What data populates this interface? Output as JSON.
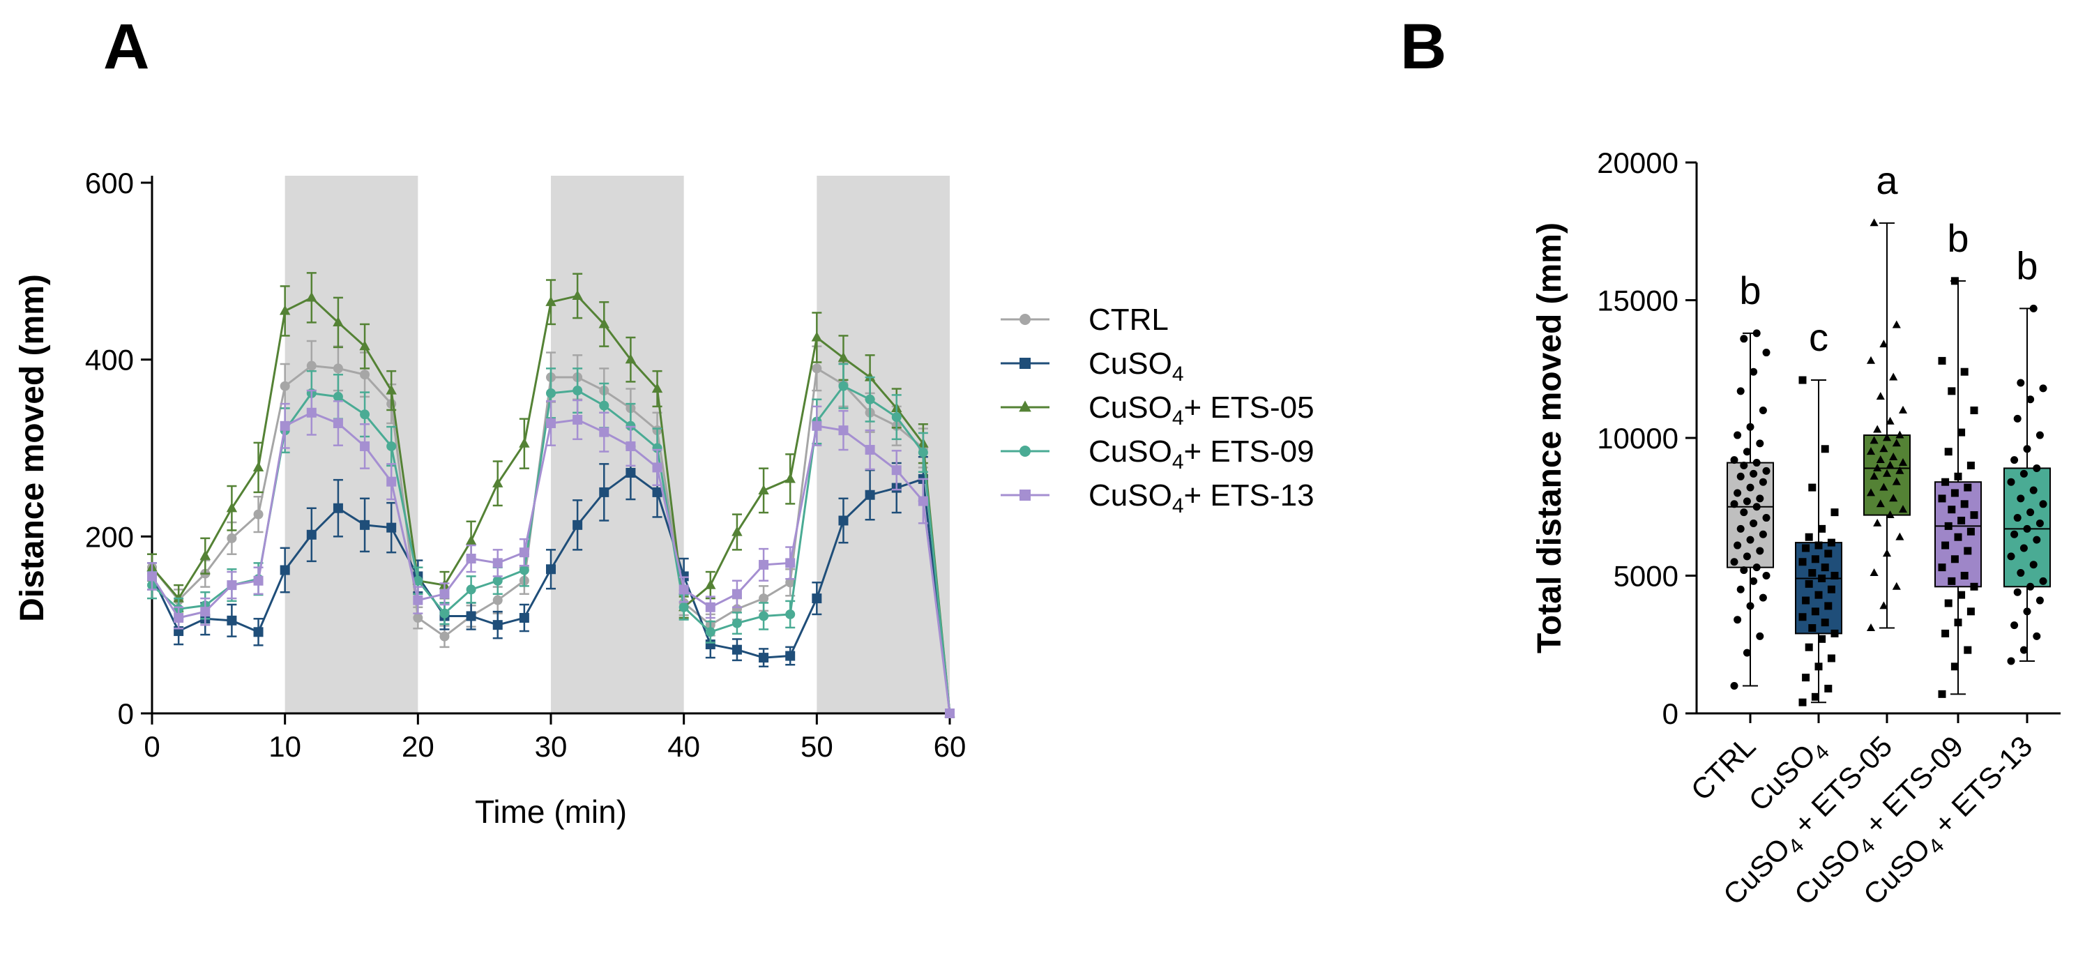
{
  "figure": {
    "panel_a_label": "A",
    "panel_b_label": "B"
  },
  "chart_data": [
    {
      "type": "line",
      "panel": "A",
      "title": "",
      "xlabel": "Time (min)",
      "ylabel": "Distance moved (mm)",
      "xlim": [
        0,
        60
      ],
      "ylim": [
        0,
        600
      ],
      "xticks": [
        0,
        10,
        20,
        30,
        40,
        50,
        60
      ],
      "yticks": [
        0,
        200,
        400,
        600
      ],
      "shaded_intervals": [
        [
          10,
          20
        ],
        [
          30,
          40
        ],
        [
          50,
          60
        ]
      ],
      "legend_position": "right",
      "x": [
        0,
        2,
        4,
        6,
        8,
        10,
        12,
        14,
        16,
        18,
        20,
        22,
        24,
        26,
        28,
        30,
        32,
        34,
        36,
        38,
        40,
        42,
        44,
        46,
        48,
        50,
        52,
        54,
        56,
        58,
        60
      ],
      "series": [
        {
          "name": "CTRL",
          "label_main": "CTRL",
          "label_sub": "",
          "label_suffix": "",
          "color": "#a6a6a6",
          "marker": "circle",
          "values": [
            165,
            128,
            158,
            198,
            225,
            370,
            393,
            390,
            383,
            350,
            108,
            87,
            110,
            128,
            150,
            380,
            380,
            365,
            345,
            320,
            125,
            100,
            118,
            130,
            148,
            390,
            372,
            340,
            325,
            300,
            0
          ],
          "errors": [
            15,
            12,
            15,
            18,
            20,
            25,
            28,
            25,
            25,
            22,
            12,
            12,
            12,
            15,
            15,
            28,
            25,
            25,
            22,
            20,
            14,
            12,
            12,
            14,
            15,
            25,
            25,
            22,
            22,
            22,
            0
          ]
        },
        {
          "name": "CuSO4",
          "label_main": "CuSO",
          "label_sub": "4",
          "label_suffix": "",
          "color": "#1f4e79",
          "marker": "square",
          "values": [
            155,
            93,
            107,
            105,
            92,
            162,
            202,
            232,
            213,
            210,
            155,
            110,
            110,
            100,
            108,
            163,
            213,
            250,
            272,
            250,
            155,
            78,
            72,
            63,
            65,
            130,
            218,
            247,
            255,
            265,
            0
          ],
          "errors": [
            15,
            15,
            18,
            18,
            15,
            25,
            30,
            32,
            30,
            28,
            18,
            15,
            15,
            15,
            15,
            22,
            28,
            32,
            30,
            28,
            20,
            15,
            12,
            10,
            10,
            18,
            25,
            28,
            28,
            25,
            0
          ]
        },
        {
          "name": "CuSO4+ ETS-05",
          "label_main": "CuSO",
          "label_sub": "4",
          "label_suffix": "+ ETS-05",
          "color": "#548235",
          "marker": "triangle",
          "values": [
            165,
            130,
            178,
            232,
            278,
            455,
            470,
            442,
            415,
            365,
            150,
            145,
            195,
            260,
            305,
            465,
            472,
            440,
            400,
            367,
            120,
            145,
            205,
            252,
            265,
            425,
            402,
            380,
            345,
            305,
            0
          ],
          "errors": [
            15,
            15,
            20,
            25,
            28,
            28,
            28,
            28,
            25,
            22,
            15,
            15,
            22,
            25,
            28,
            25,
            25,
            25,
            25,
            20,
            12,
            15,
            20,
            25,
            28,
            28,
            25,
            25,
            22,
            22,
            0
          ]
        },
        {
          "name": "CuSO4+ ETS-09",
          "label_main": "CuSO",
          "label_sub": "4",
          "label_suffix": "+ ETS-09",
          "color": "#4aab94",
          "marker": "circle",
          "values": [
            145,
            118,
            122,
            145,
            152,
            320,
            362,
            358,
            338,
            302,
            150,
            113,
            140,
            150,
            162,
            362,
            365,
            348,
            325,
            300,
            120,
            92,
            102,
            110,
            112,
            330,
            370,
            355,
            335,
            295,
            0
          ],
          "errors": [
            15,
            12,
            15,
            18,
            18,
            25,
            25,
            25,
            25,
            22,
            15,
            12,
            15,
            15,
            18,
            28,
            25,
            25,
            25,
            22,
            14,
            12,
            12,
            15,
            15,
            25,
            25,
            25,
            25,
            22,
            0
          ]
        },
        {
          "name": "CuSO4+ ETS-13",
          "label_main": "CuSO",
          "label_sub": "4",
          "label_suffix": "+ ETS-13",
          "color": "#a58fd1",
          "marker": "square",
          "values": [
            155,
            108,
            115,
            145,
            150,
            325,
            340,
            328,
            302,
            262,
            128,
            135,
            175,
            170,
            182,
            328,
            332,
            318,
            302,
            278,
            140,
            120,
            135,
            168,
            170,
            325,
            320,
            298,
            275,
            240,
            0
          ],
          "errors": [
            15,
            12,
            15,
            15,
            15,
            25,
            25,
            25,
            25,
            20,
            15,
            12,
            15,
            15,
            15,
            25,
            22,
            22,
            22,
            20,
            14,
            12,
            15,
            18,
            18,
            22,
            22,
            22,
            22,
            25,
            0
          ]
        }
      ]
    },
    {
      "type": "box",
      "panel": "B",
      "title": "",
      "xlabel": "",
      "ylabel": "Total distance moved (mm)",
      "ylim": [
        0,
        20000
      ],
      "yticks": [
        0,
        5000,
        10000,
        15000,
        20000
      ],
      "groups": [
        {
          "name": "CTRL",
          "label_main": "CTRL",
          "label_sub": "",
          "label_suffix": "",
          "color": "#bfbfbf",
          "marker": "circle",
          "significance": "b",
          "min": 1000,
          "q1": 5300,
          "median": 7500,
          "q3": 9100,
          "max": 13800,
          "points": [
            1000,
            2200,
            2800,
            3400,
            3900,
            4200,
            4500,
            4800,
            5000,
            5200,
            5300,
            5500,
            5700,
            5900,
            6100,
            6300,
            6500,
            6700,
            6900,
            7100,
            7300,
            7500,
            7600,
            7700,
            7800,
            8000,
            8200,
            8400,
            8600,
            8700,
            8800,
            9000,
            9100,
            9200,
            9500,
            9800,
            10100,
            10400,
            11000,
            11700,
            12400,
            13100,
            13600,
            13800
          ]
        },
        {
          "name": "CuSO4",
          "label_main": "CuSO",
          "label_sub": "4",
          "label_suffix": "",
          "color": "#1f4e79",
          "marker": "square",
          "significance": "c",
          "min": 400,
          "q1": 2900,
          "median": 4900,
          "q3": 6200,
          "max": 12100,
          "points": [
            400,
            600,
            900,
            1300,
            1700,
            2000,
            2400,
            2700,
            2900,
            3100,
            3300,
            3500,
            3700,
            3900,
            4100,
            4300,
            4500,
            4700,
            4900,
            5000,
            5100,
            5300,
            5500,
            5600,
            5800,
            6000,
            6100,
            6200,
            6400,
            6700,
            7300,
            8200,
            9600,
            12100
          ]
        },
        {
          "name": "CuSO4 + ETS-05",
          "label_main": "CuSO",
          "label_sub": "4",
          "label_suffix": " + ETS-05",
          "color": "#548235",
          "marker": "triangle",
          "significance": "a",
          "min": 3100,
          "q1": 7200,
          "median": 8900,
          "q3": 10100,
          "max": 17800,
          "points": [
            3100,
            3900,
            4600,
            5100,
            5800,
            6400,
            6900,
            7200,
            7400,
            7600,
            7800,
            8000,
            8200,
            8400,
            8600,
            8700,
            8800,
            8900,
            9000,
            9100,
            9200,
            9300,
            9500,
            9600,
            9800,
            9900,
            10000,
            10100,
            10300,
            10600,
            11000,
            11500,
            12200,
            12800,
            13400,
            14100,
            17800
          ]
        },
        {
          "name": "CuSO4 + ETS-09",
          "label_main": "CuSO",
          "label_sub": "4",
          "label_suffix": " + ETS-09",
          "color": "#9e86c8",
          "marker": "square",
          "significance": "b",
          "min": 700,
          "q1": 4600,
          "median": 6800,
          "q3": 8400,
          "max": 15700,
          "points": [
            700,
            1700,
            2300,
            2900,
            3300,
            3700,
            4000,
            4300,
            4600,
            4800,
            5000,
            5300,
            5600,
            5900,
            6100,
            6400,
            6600,
            6800,
            7000,
            7200,
            7400,
            7600,
            7800,
            8000,
            8200,
            8400,
            8600,
            9000,
            9500,
            10200,
            11000,
            11700,
            12400,
            12800,
            15700
          ]
        },
        {
          "name": "CuSO4 + ETS-13",
          "label_main": "CuSO",
          "label_sub": "4",
          "label_suffix": " + ETS-13",
          "color": "#4aab94",
          "marker": "circle",
          "significance": "b",
          "min": 1900,
          "q1": 4600,
          "median": 6700,
          "q3": 8900,
          "max": 14700,
          "points": [
            1900,
            2300,
            2800,
            3200,
            3700,
            4100,
            4400,
            4600,
            4800,
            5100,
            5400,
            5700,
            6000,
            6300,
            6500,
            6700,
            6900,
            7100,
            7300,
            7600,
            7800,
            8100,
            8400,
            8700,
            8900,
            9200,
            9600,
            10100,
            10700,
            11400,
            11800,
            12000,
            14700
          ]
        }
      ]
    }
  ]
}
